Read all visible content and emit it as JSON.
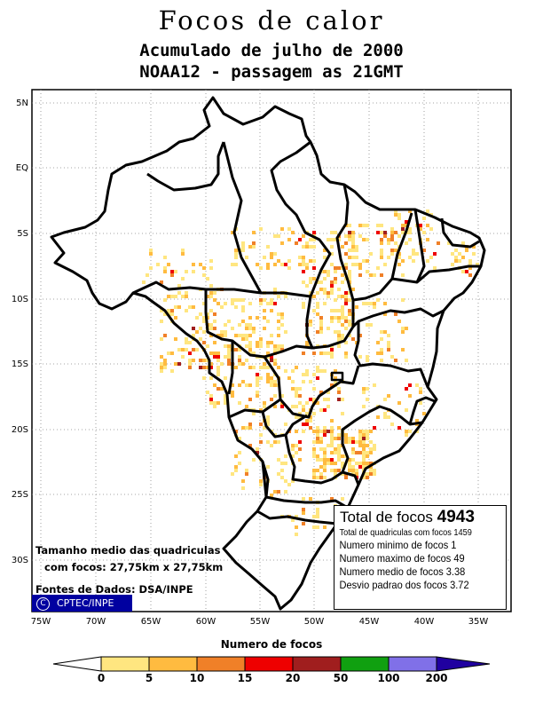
{
  "title": "Focos de calor",
  "subtitle1": "Acumulado de julho de 2000",
  "subtitle2": "NOAA12 - passagem as 21GMT",
  "lat_labels": [
    "5N",
    "EQ",
    "5S",
    "10S",
    "15S",
    "20S",
    "25S",
    "30S"
  ],
  "lon_labels": [
    "75W",
    "70W",
    "65W",
    "60W",
    "55W",
    "50W",
    "45W",
    "40W",
    "35W"
  ],
  "stats": {
    "total_label": "Total de focos",
    "total_value": "4943",
    "quadriculas": "Total de quadriculas com focos 1459",
    "minimo": "Numero minimo de focos 1",
    "maximo": "Numero maximo de focos 49",
    "medio": "Numero medio de focos 3.38",
    "desvio": "Desvio padrao dos focos 3.72"
  },
  "size_line1": "Tamanho medio das quadriculas",
  "size_line2": "com focos: 27,75km x 27,75km",
  "sources": "Fontes de Dados: DSA/INPE",
  "credit": "CPTEC/INPE",
  "credit_icon": "copyright-icon",
  "legend": {
    "title": "Numero de focos",
    "labels": [
      "0",
      "5",
      "10",
      "15",
      "20",
      "50",
      "100",
      "200"
    ],
    "colors": [
      "#ffffff",
      "#ffe680",
      "#ffbb40",
      "#f08028",
      "#ee0000",
      "#a01e1e",
      "#10a010",
      "#8070e8",
      "#2000a0"
    ]
  }
}
